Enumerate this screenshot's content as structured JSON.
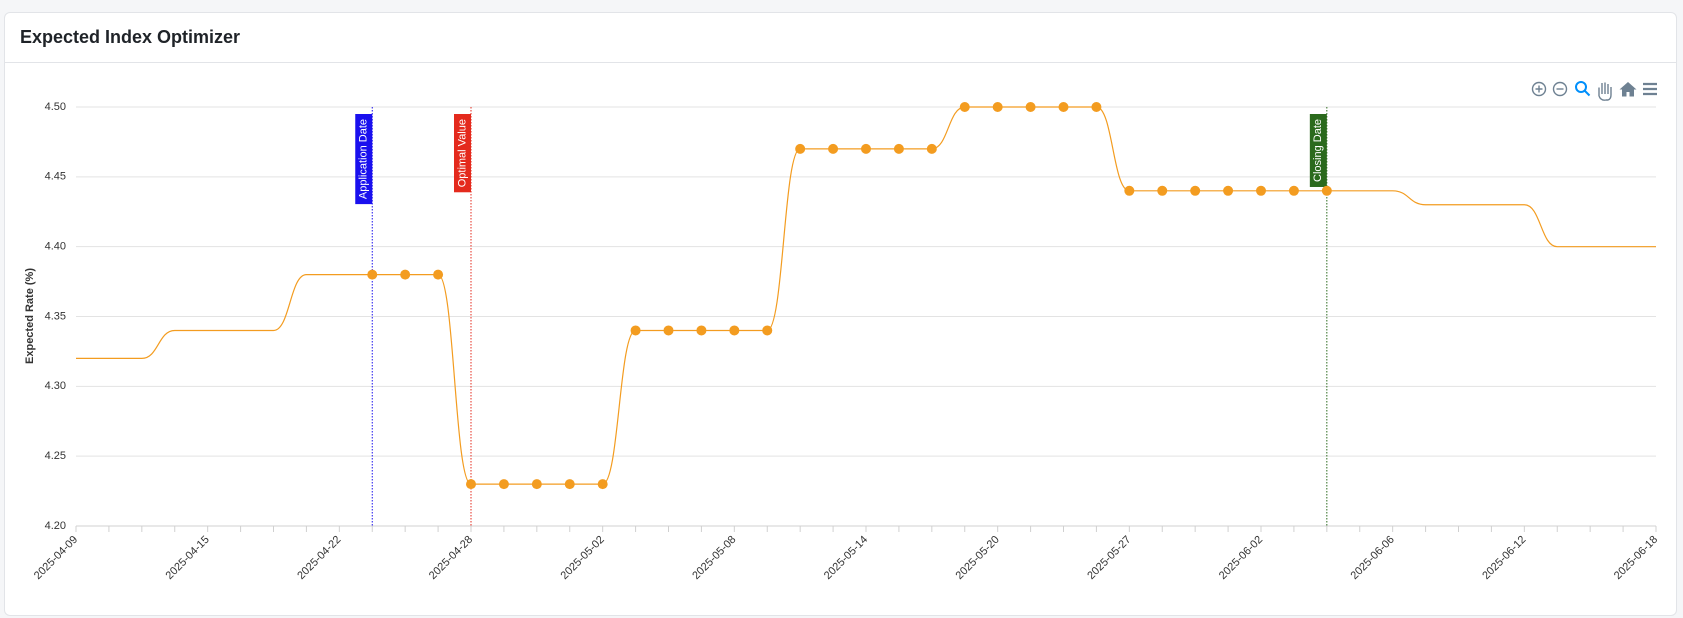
{
  "chart_data": {
    "type": "line",
    "title": "Expected Index Optimizer",
    "y_label": "Expected Rate (%)",
    "categories": [
      "2025-04-09",
      null,
      null,
      null,
      "2025-04-15",
      null,
      null,
      null,
      "2025-04-22",
      null,
      null,
      null,
      "2025-04-28",
      null,
      null,
      null,
      "2025-05-02",
      null,
      null,
      null,
      "2025-05-08",
      null,
      null,
      null,
      "2025-05-14",
      null,
      null,
      null,
      "2025-05-20",
      null,
      null,
      null,
      "2025-05-27",
      null,
      null,
      null,
      "2025-06-02",
      null,
      null,
      null,
      "2025-06-06",
      null,
      null,
      null,
      "2025-06-12",
      null,
      null,
      null,
      "2025-06-18"
    ],
    "series": [
      {
        "color": "#f39c20",
        "line": true,
        "markers": false,
        "values": [
          4.32,
          4.32,
          4.32,
          4.34,
          4.34,
          4.34,
          4.34,
          4.38,
          4.38,
          4.38,
          4.38,
          4.38,
          4.23,
          4.23,
          4.23,
          4.23,
          4.23,
          4.34,
          4.34,
          4.34,
          4.34,
          4.34,
          4.47,
          4.47,
          4.47,
          4.47,
          4.47,
          4.5,
          4.5,
          4.5,
          4.5,
          4.5,
          4.44,
          4.44,
          4.44,
          4.44,
          4.44,
          4.44,
          4.44,
          4.44,
          4.44,
          4.43,
          4.43,
          4.43,
          4.43,
          4.4,
          4.4,
          4.4,
          4.4
        ]
      },
      {
        "color": "#f39c20",
        "line": false,
        "markers": true,
        "values": [
          null,
          null,
          null,
          null,
          null,
          null,
          null,
          null,
          null,
          4.38,
          4.38,
          4.38,
          4.23,
          4.23,
          4.23,
          4.23,
          4.23,
          4.34,
          4.34,
          4.34,
          4.34,
          4.34,
          4.47,
          4.47,
          4.47,
          4.47,
          4.47,
          4.5,
          4.5,
          4.5,
          4.5,
          4.5,
          4.44,
          4.44,
          4.44,
          4.44,
          4.44,
          4.44,
          4.44,
          null,
          null,
          null,
          null,
          null,
          null,
          null,
          null,
          null,
          null
        ]
      }
    ],
    "ylim": [
      4.2,
      4.5
    ],
    "yticks": [
      {
        "value": 4.2,
        "label": "4.20"
      },
      {
        "value": 4.25,
        "label": "4.25"
      },
      {
        "value": 4.3,
        "label": "4.30"
      },
      {
        "value": 4.35,
        "label": "4.35"
      },
      {
        "value": 4.4,
        "label": "4.40"
      },
      {
        "value": 4.45,
        "label": "4.45"
      },
      {
        "value": 4.5,
        "label": "4.50"
      }
    ],
    "grid": true,
    "annotations": [
      {
        "at": 9,
        "label": "Application Date",
        "color": "#1a10ee"
      },
      {
        "at": 12,
        "label": "Optimal Value",
        "color": "#e42a1d"
      },
      {
        "at": 38,
        "label": "Closing Date",
        "color": "#2b6a1d"
      }
    ]
  }
}
